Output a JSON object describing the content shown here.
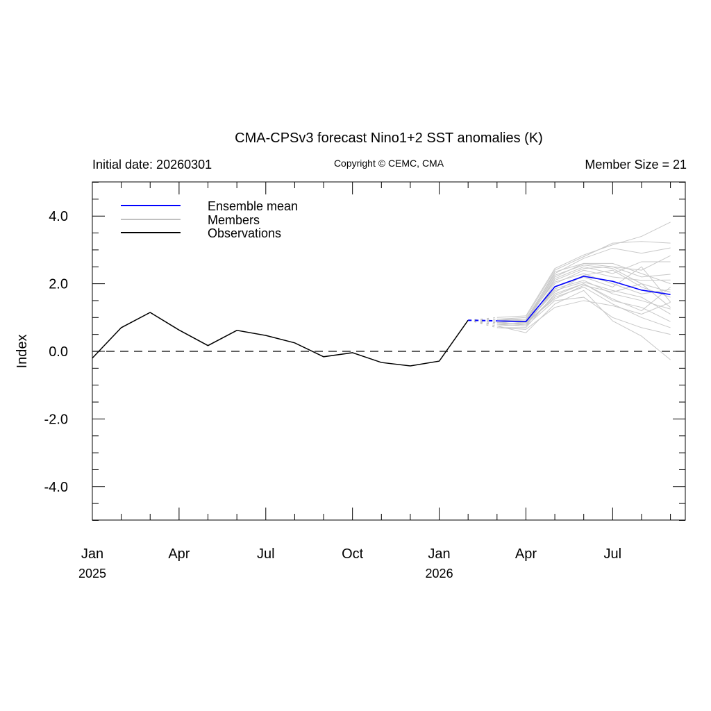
{
  "chart_data": {
    "type": "line",
    "title": "CMA-CPSv3 forecast Nino1+2 SST anomalies (K)",
    "subtitle_left": "Initial date: 20260301",
    "subtitle_center": "Copyright © CEMC, CMA",
    "subtitle_right": "Member Size = 21",
    "ylabel": "Index",
    "ylim": [
      -5,
      5
    ],
    "xlim_months": [
      0,
      20.5
    ],
    "yticks": [
      {
        "v": 4,
        "label": "4.0"
      },
      {
        "v": 2,
        "label": "2.0"
      },
      {
        "v": 0,
        "label": "0.0"
      },
      {
        "v": -2,
        "label": "-2.0"
      },
      {
        "v": -4,
        "label": "-4.0"
      }
    ],
    "xticks": [
      {
        "m": 0,
        "label": "Jan",
        "year": "2025"
      },
      {
        "m": 3,
        "label": "Apr"
      },
      {
        "m": 6,
        "label": "Jul"
      },
      {
        "m": 9,
        "label": "Oct"
      },
      {
        "m": 12,
        "label": "Jan",
        "year": "2026"
      },
      {
        "m": 15,
        "label": "Apr"
      },
      {
        "m": 18,
        "label": "Jul"
      }
    ],
    "legend": {
      "position": "top-left",
      "entries": [
        {
          "name": "Ensemble mean",
          "color": "#0000ff"
        },
        {
          "name": "Members",
          "color": "#c0c0c0"
        },
        {
          "name": "Observations",
          "color": "#000000"
        }
      ]
    },
    "observations": {
      "start_month": 0,
      "values": [
        -0.2,
        0.7,
        1.15,
        0.63,
        0.17,
        0.62,
        0.47,
        0.25,
        -0.16,
        -0.04,
        -0.33,
        -0.43,
        -0.29,
        0.92
      ]
    },
    "ensemble_mean": {
      "start_month": 13,
      "values": [
        0.92,
        0.9,
        0.88,
        1.91,
        2.22,
        2.07,
        1.81,
        1.68
      ]
    },
    "members": {
      "start_month": 14,
      "values": [
        [
          1.0,
          1.05,
          2.45,
          2.85,
          3.15,
          3.4,
          3.82
        ],
        [
          0.95,
          1.0,
          2.4,
          2.8,
          3.2,
          3.25,
          3.2
        ],
        [
          0.9,
          0.95,
          2.3,
          2.75,
          3.05,
          2.9,
          3.06
        ],
        [
          0.85,
          0.9,
          2.2,
          2.6,
          2.5,
          2.4,
          2.83
        ],
        [
          0.8,
          0.85,
          2.15,
          2.5,
          2.3,
          2.65,
          2.65
        ],
        [
          0.9,
          0.9,
          2.1,
          2.45,
          2.5,
          2.2,
          2.28
        ],
        [
          0.85,
          0.8,
          2.0,
          2.4,
          2.2,
          2.1,
          2.11
        ],
        [
          0.95,
          0.95,
          2.05,
          2.3,
          2.0,
          1.7,
          1.83
        ],
        [
          0.8,
          0.75,
          1.9,
          2.2,
          1.9,
          2.5,
          1.46
        ],
        [
          0.75,
          0.8,
          1.85,
          2.1,
          1.7,
          1.5,
          1.25
        ],
        [
          0.9,
          0.85,
          1.8,
          2.05,
          1.8,
          1.6,
          1.1
        ],
        [
          0.7,
          0.7,
          1.7,
          2.0,
          1.5,
          1.3,
          0.88
        ],
        [
          0.85,
          0.8,
          1.6,
          1.9,
          1.4,
          1.0,
          0.7
        ],
        [
          0.8,
          0.75,
          1.5,
          1.6,
          1.0,
          0.7,
          0.5
        ],
        [
          0.75,
          0.55,
          1.4,
          1.8,
          0.9,
          0.45,
          -0.25
        ],
        [
          0.9,
          0.85,
          1.75,
          2.25,
          2.4,
          1.9,
          1.6
        ],
        [
          0.85,
          0.8,
          1.65,
          2.0,
          1.55,
          1.2,
          1.9
        ],
        [
          0.8,
          0.85,
          1.55,
          1.95,
          1.75,
          2.0,
          1.3
        ],
        [
          0.95,
          0.9,
          2.25,
          2.55,
          2.45,
          2.0,
          1.75
        ],
        [
          0.7,
          0.65,
          1.3,
          1.5,
          1.35,
          1.1,
          1.45
        ],
        [
          0.85,
          0.9,
          2.35,
          2.6,
          2.6,
          2.3,
          2.0
        ]
      ]
    }
  }
}
